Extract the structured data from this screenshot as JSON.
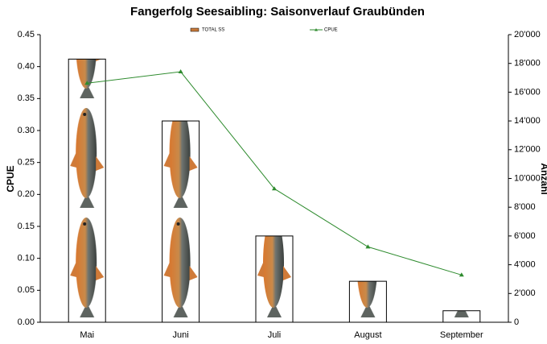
{
  "chart_data": {
    "type": "combo",
    "title": "Fangerfolg Seesaibling: Saisonverlauf Graubünden",
    "categories": [
      "Mai",
      "Juni",
      "Juli",
      "August",
      "September"
    ],
    "y_label": "CPUE",
    "y2_label": "Anzahl",
    "series": [
      {
        "name": "TOTAL SS",
        "type": "bar",
        "axis": "y2",
        "color": "#c87a3a",
        "values": [
          18300,
          14000,
          6000,
          2850,
          800
        ]
      },
      {
        "name": "CPUE",
        "type": "line",
        "color": "#2e8b2e",
        "values": [
          0.374,
          0.392,
          0.209,
          0.118,
          0.074
        ]
      }
    ],
    "ylim": [
      0,
      0.45
    ],
    "yticks": [
      {
        "value": 0,
        "label": "0.00"
      },
      0.05,
      {
        "value": 0.1,
        "label": "0.10"
      },
      0.15,
      {
        "value": 0.2,
        "label": "0.20"
      },
      0.25,
      {
        "value": 0.3,
        "label": "0.30"
      },
      0.35,
      {
        "value": 0.4,
        "label": "0.40"
      },
      0.45
    ],
    "y2lim": [
      0,
      20000
    ],
    "y2ticks": [
      0,
      {
        "value": 2000,
        "label": "2'000"
      },
      {
        "value": 4000,
        "label": "4'000"
      },
      {
        "value": 6000,
        "label": "6'000"
      },
      {
        "value": 8000,
        "label": "8'000"
      },
      {
        "value": 10000,
        "label": "10'000"
      },
      {
        "value": 12000,
        "label": "12'000"
      },
      {
        "value": 14000,
        "label": "14'000"
      },
      {
        "value": 16000,
        "label": "16'000"
      },
      {
        "value": 18000,
        "label": "18'000"
      },
      {
        "value": 20000,
        "label": "20'000"
      }
    ],
    "legend": "top"
  }
}
